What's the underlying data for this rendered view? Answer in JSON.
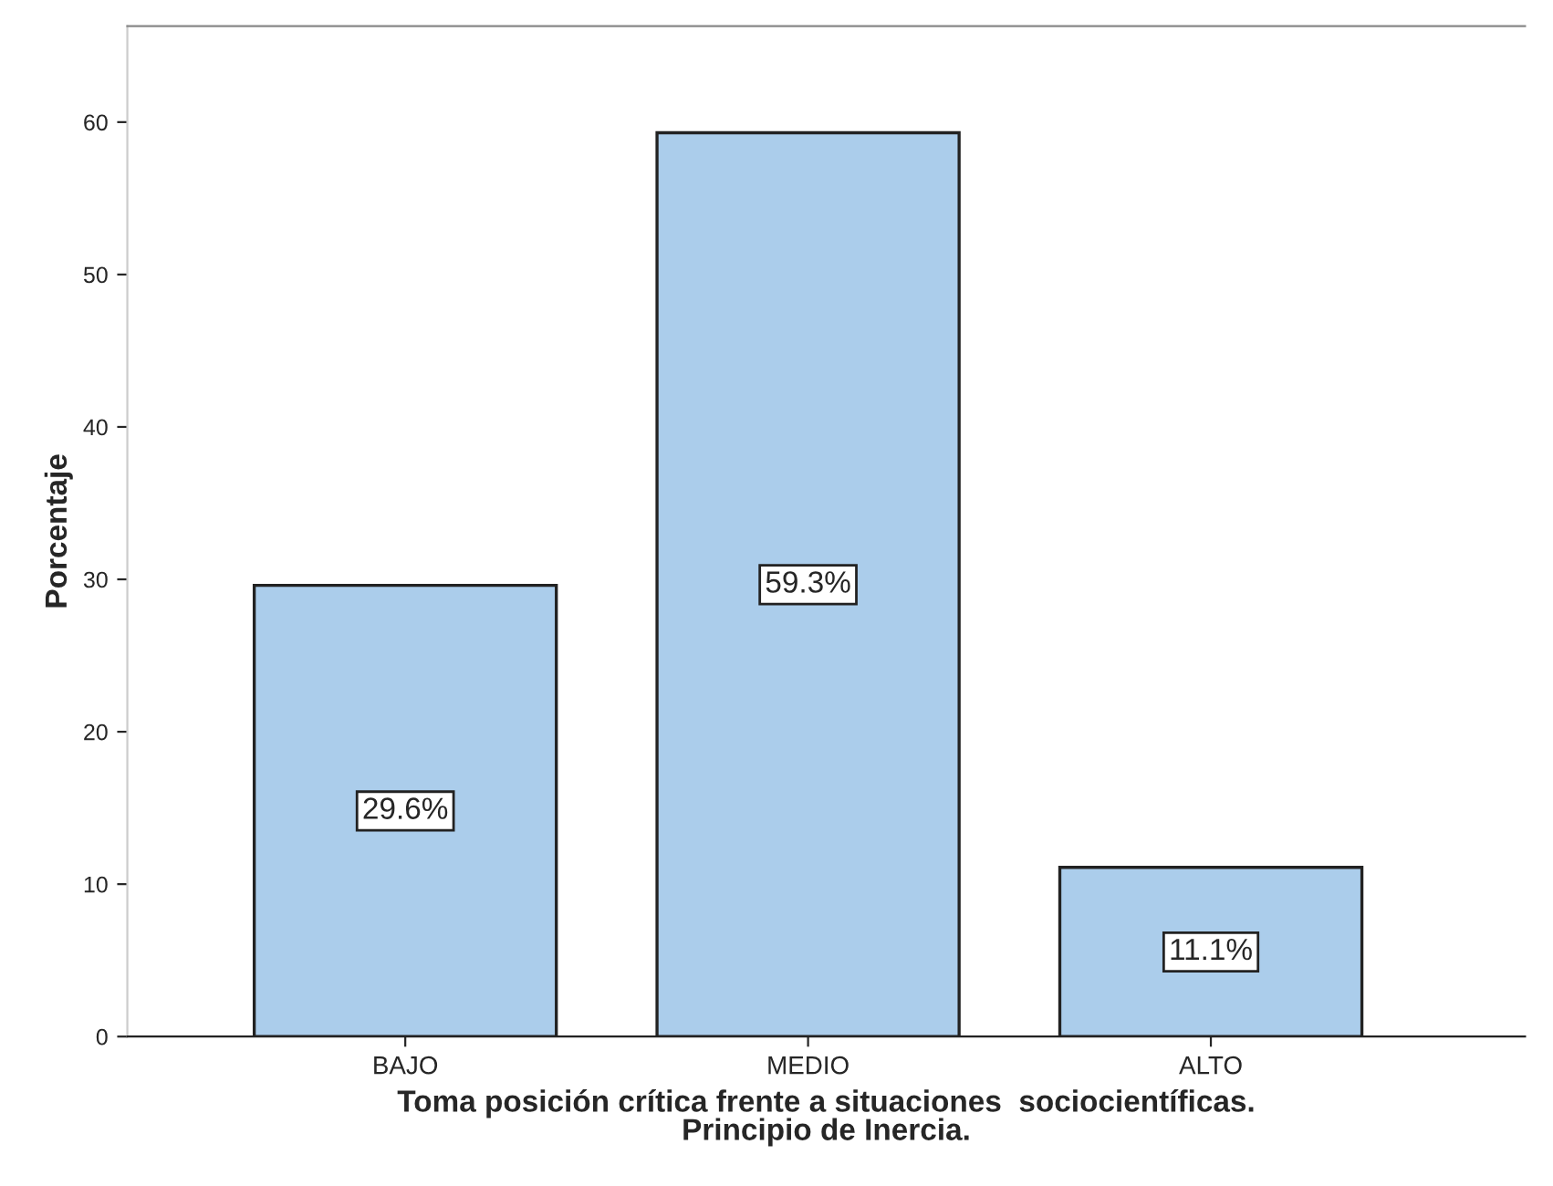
{
  "chart_data": {
    "type": "bar",
    "ylabel": "Porcentaje",
    "xlabel": "Toma posición crítica frente a situaciones  sociocientíficas.\nPrincipio de Inercia.",
    "categories": [
      "BAJO",
      "MEDIO",
      "ALTO"
    ],
    "values": [
      29.6,
      59.3,
      11.1
    ],
    "value_labels": [
      "29.6%",
      "59.3%",
      "11.1%"
    ],
    "color": "#abcdeb",
    "ylim": [
      0,
      66.3
    ],
    "yticks": [
      0,
      10,
      20,
      30,
      40,
      50,
      60
    ],
    "grid": false,
    "legend": false
  }
}
